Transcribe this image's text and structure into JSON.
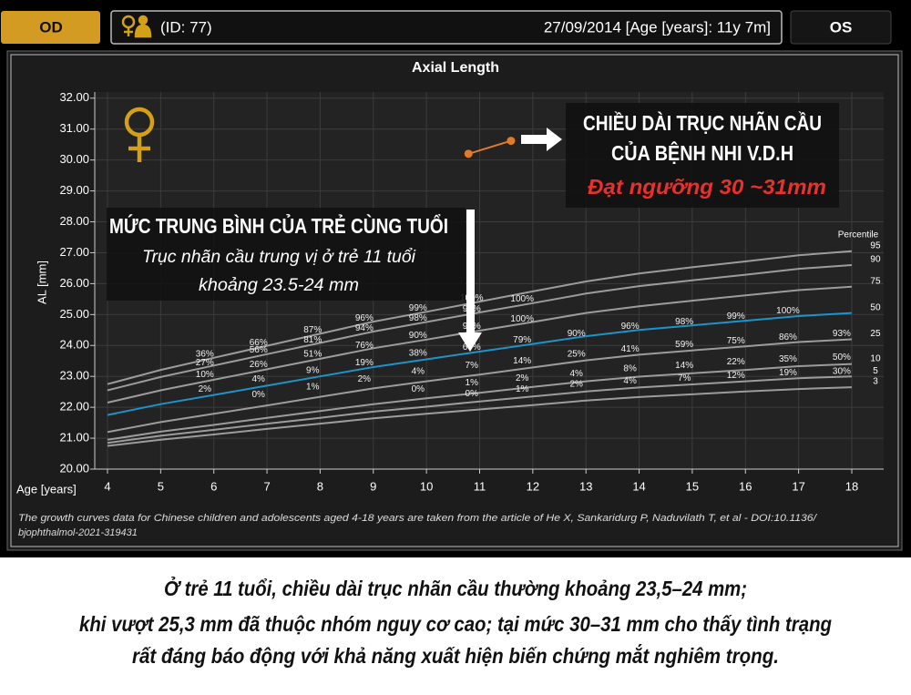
{
  "header": {
    "left_button": "OD",
    "id": "(ID: 77)",
    "date": "27/09/2014 [Age [years]: 11y 7m]",
    "right_button": "OS"
  },
  "chart_data": {
    "type": "line",
    "title": "Axial Length",
    "x_label": "Age [years]",
    "y_label": "AL [mm]",
    "x": [
      4,
      5,
      6,
      7,
      8,
      9,
      10,
      11,
      12,
      13,
      14,
      15,
      16,
      17,
      18
    ],
    "legend_title": "Percentile",
    "series": [
      {
        "name": "95",
        "color": "#9c9c9c",
        "values": [
          22.75,
          23.21,
          23.6,
          23.99,
          24.38,
          24.77,
          25.09,
          25.42,
          25.75,
          26.07,
          26.33,
          26.53,
          26.72,
          26.92,
          27.05
        ]
      },
      {
        "name": "90",
        "color": "#9c9c9c",
        "values": [
          22.55,
          22.98,
          23.35,
          23.72,
          24.08,
          24.45,
          24.76,
          25.07,
          25.37,
          25.68,
          25.92,
          26.11,
          26.29,
          26.48,
          26.6
        ]
      },
      {
        "name": "75",
        "color": "#9c9c9c",
        "values": [
          22.15,
          22.55,
          22.89,
          23.23,
          23.57,
          23.91,
          24.19,
          24.48,
          24.76,
          25.05,
          25.27,
          25.45,
          25.62,
          25.79,
          25.9
        ]
      },
      {
        "name": "50",
        "color": "#1e93c9",
        "values": [
          21.75,
          22.1,
          22.4,
          22.7,
          23.0,
          23.3,
          23.55,
          23.8,
          24.05,
          24.3,
          24.5,
          24.65,
          24.8,
          24.95,
          25.05
        ]
      },
      {
        "name": "25",
        "color": "#9c9c9c",
        "values": [
          21.2,
          21.52,
          21.79,
          22.06,
          22.34,
          22.61,
          22.84,
          23.06,
          23.29,
          23.52,
          23.7,
          23.84,
          23.97,
          24.11,
          24.2
        ]
      },
      {
        "name": "10",
        "color": "#9c9c9c",
        "values": [
          20.95,
          21.21,
          21.43,
          21.66,
          21.88,
          22.1,
          22.29,
          22.47,
          22.66,
          22.84,
          22.99,
          23.1,
          23.21,
          23.33,
          23.4
        ]
      },
      {
        "name": "5",
        "color": "#9c9c9c",
        "values": [
          20.85,
          21.08,
          21.27,
          21.47,
          21.66,
          21.86,
          22.02,
          22.19,
          22.35,
          22.51,
          22.64,
          22.74,
          22.84,
          22.94,
          23.0
        ]
      },
      {
        "name": "3",
        "color": "#9c9c9c",
        "values": [
          20.75,
          20.95,
          21.12,
          21.3,
          21.47,
          21.64,
          21.79,
          21.93,
          22.07,
          22.22,
          22.33,
          22.42,
          22.51,
          22.59,
          22.65
        ]
      }
    ],
    "patient": {
      "color": "#e07b2a",
      "x": [
        10.79,
        11.59
      ],
      "values": [
        30.2,
        30.62
      ]
    },
    "point_labels": [
      [
        5.83,
        23.71,
        "36%"
      ],
      [
        5.83,
        23.44,
        "27%"
      ],
      [
        5.83,
        23.06,
        "10%"
      ],
      [
        5.83,
        22.59,
        "2%"
      ],
      [
        6.84,
        24.09,
        "66%"
      ],
      [
        6.84,
        23.85,
        "56%"
      ],
      [
        6.84,
        23.38,
        "26%"
      ],
      [
        6.84,
        22.91,
        "4%"
      ],
      [
        6.84,
        22.41,
        "0%"
      ],
      [
        7.86,
        24.5,
        "87%"
      ],
      [
        7.86,
        24.18,
        "81%"
      ],
      [
        7.86,
        23.71,
        "51%"
      ],
      [
        7.86,
        23.18,
        "9%"
      ],
      [
        7.86,
        22.65,
        "1%"
      ],
      [
        8.83,
        24.88,
        "96%"
      ],
      [
        8.83,
        24.56,
        "94%"
      ],
      [
        8.83,
        24.0,
        "76%"
      ],
      [
        8.83,
        23.44,
        "19%"
      ],
      [
        8.83,
        22.91,
        "2%"
      ],
      [
        9.84,
        25.21,
        "99%"
      ],
      [
        9.84,
        24.88,
        "98%"
      ],
      [
        9.84,
        24.32,
        "90%"
      ],
      [
        9.84,
        23.74,
        "38%"
      ],
      [
        9.84,
        23.15,
        "4%"
      ],
      [
        9.84,
        22.59,
        "0%"
      ],
      [
        10.85,
        25.53,
        "100%"
      ],
      [
        10.85,
        25.18,
        "99%"
      ],
      [
        10.85,
        24.62,
        "99%"
      ],
      [
        10.85,
        23.94,
        "67%"
      ],
      [
        10.85,
        23.35,
        "7%"
      ],
      [
        10.85,
        22.79,
        "1%"
      ],
      [
        10.85,
        22.44,
        "0%"
      ],
      [
        11.8,
        25.5,
        "100%"
      ],
      [
        11.8,
        24.85,
        "100%"
      ],
      [
        11.8,
        24.18,
        "79%"
      ],
      [
        11.8,
        23.5,
        "14%"
      ],
      [
        11.8,
        22.94,
        "2%"
      ],
      [
        11.8,
        22.59,
        "1%"
      ],
      [
        12.82,
        24.38,
        "90%"
      ],
      [
        12.82,
        23.71,
        "25%"
      ],
      [
        12.82,
        23.09,
        "4%"
      ],
      [
        12.82,
        22.74,
        "2%"
      ],
      [
        13.83,
        24.62,
        "96%"
      ],
      [
        13.83,
        23.88,
        "41%"
      ],
      [
        13.83,
        23.24,
        "8%"
      ],
      [
        13.83,
        22.85,
        "4%"
      ],
      [
        14.85,
        24.76,
        "98%"
      ],
      [
        14.85,
        24.03,
        "59%"
      ],
      [
        14.85,
        23.35,
        "14%"
      ],
      [
        14.85,
        22.94,
        "7%"
      ],
      [
        15.82,
        24.94,
        "99%"
      ],
      [
        15.82,
        24.15,
        "75%"
      ],
      [
        15.82,
        23.47,
        "22%"
      ],
      [
        15.82,
        23.03,
        "12%"
      ],
      [
        16.8,
        25.12,
        "100%"
      ],
      [
        16.8,
        24.26,
        "86%"
      ],
      [
        16.8,
        23.56,
        "35%"
      ],
      [
        16.8,
        23.12,
        "19%"
      ],
      [
        17.81,
        24.38,
        "93%"
      ],
      [
        17.81,
        23.62,
        "50%"
      ],
      [
        17.81,
        23.15,
        "30%"
      ]
    ],
    "xlim": [
      3.76,
      18.6
    ],
    "ylim": [
      20,
      32.2
    ],
    "xticks": [
      4,
      5,
      6,
      7,
      8,
      9,
      10,
      11,
      12,
      13,
      14,
      15,
      16,
      17,
      18
    ],
    "yticks": [
      {
        "value": 20,
        "label": "20.00"
      },
      {
        "value": 21,
        "label": "21.00"
      },
      {
        "value": 22,
        "label": "22.00"
      },
      {
        "value": 23,
        "label": "23.00"
      },
      {
        "value": 24,
        "label": "24.00"
      },
      {
        "value": 25,
        "label": "25.00"
      },
      {
        "value": 26,
        "label": "26.00"
      },
      {
        "value": 27,
        "label": "27.00"
      },
      {
        "value": 28,
        "label": "28.00"
      },
      {
        "value": 29,
        "label": "29.00"
      },
      {
        "value": 30,
        "label": "30.00"
      },
      {
        "value": 31,
        "label": "31.00"
      },
      {
        "value": 32,
        "label": "32.00"
      }
    ],
    "grid": true,
    "footnote": [
      "The growth curves data for Chinese children and adolescents aged 4-18 years are taken from the article of He X, Sankaridurg P, Naduvilath T, et al - DOI:10.1136/",
      "bjophthalmol-2021-319431"
    ]
  },
  "callouts": [
    {
      "lines": [
        "CHIỀU DÀI TRỤC NHÃN CẦU",
        "CỦA BỆNH NHI V.D.H"
      ],
      "highlight": "Đạt ngưỡng 30 ~31mm"
    },
    {
      "lines": [
        "MỨC TRUNG BÌNH CỦA TRẺ CÙNG TUỔI"
      ],
      "notes": [
        "Trục nhãn cầu trung vị ở trẻ 11 tuổi",
        "khoảng 23.5-24 mm"
      ]
    }
  ],
  "caption": [
    "Ở trẻ 11 tuổi, chiều dài trục nhãn cầu thường khoảng 23,5–24 mm;",
    "khi vượt 25,3 mm đã thuộc nhóm nguy cơ cao; tại mức 30–31 mm cho thấy tình trạng",
    "rất đáng báo động với khả năng xuất hiện biến chứng mắt nghiêm trọng."
  ]
}
